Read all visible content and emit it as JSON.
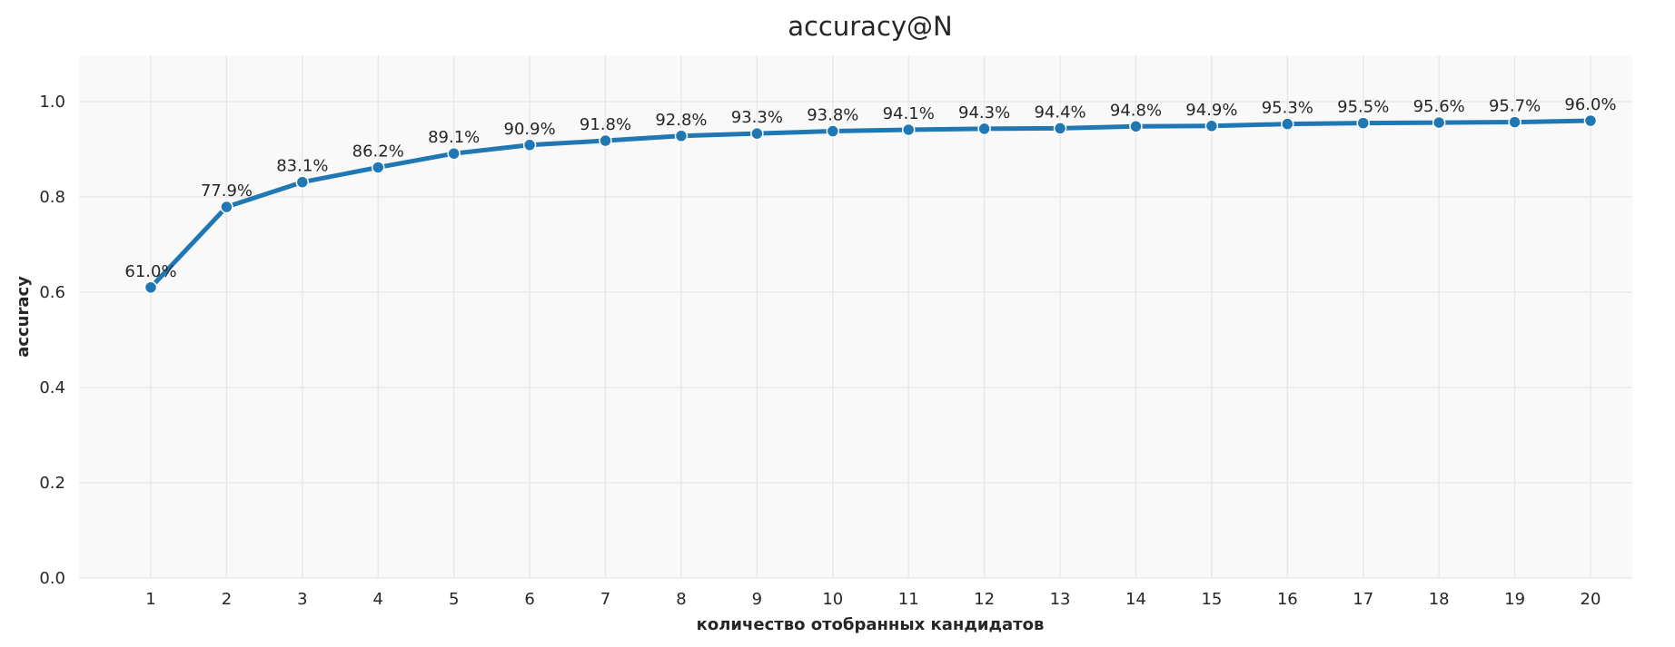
{
  "chart_data": {
    "type": "line",
    "title": "accuracy@N",
    "xlabel": "количество отобранных кандидатов",
    "ylabel": "accuracy",
    "x": [
      1,
      2,
      3,
      4,
      5,
      6,
      7,
      8,
      9,
      10,
      11,
      12,
      13,
      14,
      15,
      16,
      17,
      18,
      19,
      20
    ],
    "x_tick_labels": [
      "1",
      "2",
      "3",
      "4",
      "5",
      "6",
      "7",
      "8",
      "9",
      "10",
      "11",
      "12",
      "13",
      "14",
      "15",
      "16",
      "17",
      "18",
      "19",
      "20"
    ],
    "series": [
      {
        "values": [
          0.61,
          0.779,
          0.831,
          0.862,
          0.891,
          0.909,
          0.918,
          0.928,
          0.933,
          0.938,
          0.941,
          0.943,
          0.944,
          0.948,
          0.949,
          0.953,
          0.955,
          0.956,
          0.957,
          0.96
        ],
        "data_labels": [
          "61.0%",
          "77.9%",
          "83.1%",
          "86.2%",
          "89.1%",
          "90.9%",
          "91.8%",
          "92.8%",
          "93.3%",
          "93.8%",
          "94.1%",
          "94.3%",
          "94.4%",
          "94.8%",
          "94.9%",
          "95.3%",
          "95.5%",
          "95.6%",
          "95.7%",
          "96.0%"
        ],
        "color": "#1f77b4"
      }
    ],
    "ylim": [
      0.0,
      1.1
    ],
    "y_ticks": [
      0.0,
      0.2,
      0.4,
      0.6,
      0.8,
      1.0
    ],
    "y_tick_labels": [
      "0.0",
      "0.2",
      "0.4",
      "0.6",
      "0.8",
      "1.0"
    ],
    "grid": true,
    "legend": "none",
    "colors": {
      "plot_background": "#f9f9f9",
      "grid": "#e6e6e6",
      "text": "#262626"
    }
  }
}
